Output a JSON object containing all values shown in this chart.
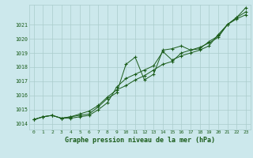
{
  "title": "Graphe pression niveau de la mer (hPa)",
  "background_color": "#cce8ec",
  "grid_color": "#aacccc",
  "line_color": "#1a5c1a",
  "xlim_min": -0.5,
  "xlim_max": 23.5,
  "ylim_min": 1013.6,
  "ylim_max": 1022.4,
  "yticks": [
    1014,
    1015,
    1016,
    1017,
    1018,
    1019,
    1020,
    1021
  ],
  "xticks": [
    0,
    1,
    2,
    3,
    4,
    5,
    6,
    7,
    8,
    9,
    10,
    11,
    12,
    13,
    14,
    15,
    16,
    17,
    18,
    19,
    20,
    21,
    22,
    23
  ],
  "series": [
    [
      1014.3,
      1014.5,
      1014.6,
      1014.4,
      1014.4,
      1014.5,
      1014.6,
      1015.0,
      1015.5,
      1016.6,
      1017.2,
      1017.5,
      1017.8,
      1018.1,
      1019.1,
      1018.5,
      1018.8,
      1019.0,
      1019.2,
      1019.5,
      1020.3,
      1021.0,
      1021.5,
      1021.9
    ],
    [
      1014.3,
      1014.5,
      1014.6,
      1014.4,
      1014.5,
      1014.6,
      1014.7,
      1015.2,
      1015.8,
      1016.2,
      1018.2,
      1018.7,
      1017.1,
      1017.5,
      1019.2,
      1019.3,
      1019.5,
      1019.2,
      1019.3,
      1019.8,
      1020.2,
      1021.0,
      1021.5,
      1022.2
    ],
    [
      1014.3,
      1014.5,
      1014.6,
      1014.4,
      1014.5,
      1014.7,
      1014.9,
      1015.3,
      1015.9,
      1016.4,
      1016.7,
      1017.1,
      1017.4,
      1017.8,
      1018.2,
      1018.4,
      1019.0,
      1019.2,
      1019.4,
      1019.7,
      1020.1,
      1021.0,
      1021.4,
      1021.7
    ]
  ]
}
